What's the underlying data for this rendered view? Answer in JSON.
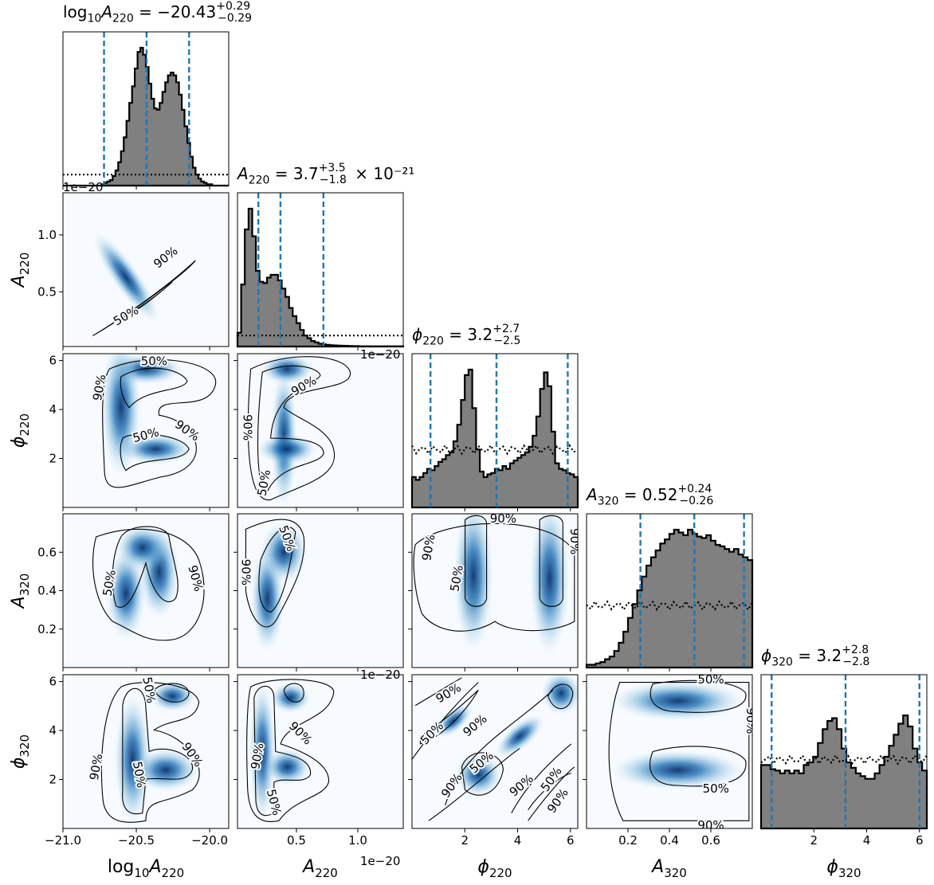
{
  "chart_data": {
    "type": "corner",
    "parameters": [
      "log10_A220",
      "A220",
      "phi220",
      "A320",
      "phi320"
    ],
    "titles": [
      {
        "param": "log10_A220",
        "pre": "log",
        "sub1": "10",
        "sym": "A",
        "sub2": "220",
        "eq": " = −20.43",
        "sup": "+0.29",
        "sub": "−0.29",
        "post": ""
      },
      {
        "param": "A220",
        "pre": "",
        "sub1": "",
        "sym": "A",
        "sub2": "220",
        "eq": " = 3.7",
        "sup": "+3.5",
        "sub": "−1.8",
        "post": " × 10⁻²¹"
      },
      {
        "param": "phi220",
        "pre": "",
        "sub1": "",
        "sym": "ϕ",
        "sub2": "220",
        "eq": " = 3.2",
        "sup": "+2.7",
        "sub": "−2.5",
        "post": ""
      },
      {
        "param": "A320",
        "pre": "",
        "sub1": "",
        "sym": "A",
        "sub2": "320",
        "eq": " = 0.52",
        "sup": "+0.24",
        "sub": "−0.26",
        "post": ""
      },
      {
        "param": "phi320",
        "pre": "",
        "sub1": "",
        "sym": "ϕ",
        "sub2": "320",
        "eq": " = 3.2",
        "sup": "+2.8",
        "sub": "−2.8",
        "post": ""
      }
    ],
    "axis_labels": [
      {
        "pre": "log",
        "sub1": "10",
        "sym": "A",
        "sub2": "220"
      },
      {
        "pre": "",
        "sub1": "",
        "sym": "A",
        "sub2": "220"
      },
      {
        "pre": "",
        "sub1": "",
        "sym": "ϕ",
        "sub2": "220"
      },
      {
        "pre": "",
        "sub1": "",
        "sym": "A",
        "sub2": "320"
      },
      {
        "pre": "",
        "sub1": "",
        "sym": "ϕ",
        "sub2": "320"
      }
    ],
    "offset_text": "1e−20",
    "ranges": [
      [
        -21.0,
        -19.87
      ],
      [
        0.02,
        1.37
      ],
      [
        0.0,
        6.28
      ],
      [
        0.0,
        0.8
      ],
      [
        0.0,
        6.28
      ]
    ],
    "ticks": [
      {
        "values": [
          -21.0,
          -20.5,
          -20.0
        ],
        "labels": [
          "−21.0",
          "−20.5",
          "−20.0"
        ]
      },
      {
        "values": [
          0.5,
          1.0
        ],
        "labels": [
          "0.5",
          "1.0"
        ]
      },
      {
        "values": [
          2,
          4,
          6
        ],
        "labels": [
          "2",
          "4",
          "6"
        ]
      },
      {
        "values": [
          0.2,
          0.4,
          0.6
        ],
        "labels": [
          "0.2",
          "0.4",
          "0.6"
        ]
      },
      {
        "values": [
          2,
          4,
          6
        ],
        "labels": [
          "2",
          "4",
          "6"
        ]
      }
    ],
    "quantiles": [
      [
        -20.72,
        -20.43,
        -20.14
      ],
      [
        0.19,
        0.37,
        0.72
      ],
      [
        0.7,
        3.2,
        5.9
      ],
      [
        0.26,
        0.52,
        0.76
      ],
      [
        0.4,
        3.2,
        6.0
      ]
    ],
    "marginal_histograms": [
      [
        0.0,
        0.0,
        0.0,
        0.0,
        0.0,
        0.0,
        0.0,
        0.0,
        0.0,
        0.0,
        0.0,
        0.0,
        0.0,
        0.0,
        0.01,
        0.02,
        0.03,
        0.04,
        0.07,
        0.11,
        0.17,
        0.25,
        0.35,
        0.47,
        0.6,
        0.72,
        0.85,
        0.97,
        1.0,
        0.95,
        0.86,
        0.74,
        0.63,
        0.56,
        0.55,
        0.6,
        0.68,
        0.75,
        0.8,
        0.82,
        0.8,
        0.75,
        0.66,
        0.55,
        0.43,
        0.31,
        0.21,
        0.13,
        0.08,
        0.05,
        0.03,
        0.02,
        0.01,
        0.01,
        0.0,
        0.0,
        0.0,
        0.0,
        0.0,
        0.0
      ],
      [
        0.1,
        0.45,
        0.85,
        1.0,
        0.8,
        0.55,
        0.47,
        0.46,
        0.5,
        0.52,
        0.52,
        0.48,
        0.42,
        0.36,
        0.28,
        0.22,
        0.17,
        0.12,
        0.08,
        0.06,
        0.04,
        0.03,
        0.02,
        0.015,
        0.012,
        0.01,
        0.008,
        0.007,
        0.006,
        0.005,
        0.004,
        0.003,
        0.003,
        0.002,
        0.002,
        0.002,
        0.002,
        0.002,
        0.002,
        0.002,
        0.002,
        0.002,
        0.002,
        0.002,
        0.002
      ],
      [
        0.22,
        0.2,
        0.22,
        0.25,
        0.28,
        0.27,
        0.3,
        0.33,
        0.35,
        0.38,
        0.4,
        0.48,
        0.6,
        0.78,
        0.96,
        1.0,
        0.72,
        0.42,
        0.26,
        0.22,
        0.24,
        0.25,
        0.28,
        0.27,
        0.3,
        0.28,
        0.32,
        0.34,
        0.36,
        0.38,
        0.4,
        0.44,
        0.52,
        0.66,
        0.86,
        0.98,
        0.88,
        0.55,
        0.32,
        0.28,
        0.27,
        0.25,
        0.24,
        0.22
      ],
      [
        0.02,
        0.02,
        0.03,
        0.04,
        0.06,
        0.08,
        0.12,
        0.18,
        0.26,
        0.36,
        0.46,
        0.56,
        0.66,
        0.74,
        0.8,
        0.85,
        0.9,
        0.93,
        0.97,
        1.0,
        0.98,
        0.96,
        1.0,
        0.97,
        0.95,
        0.94,
        0.96,
        0.92,
        0.89,
        0.88,
        0.86,
        0.84,
        0.86,
        0.82,
        0.8,
        0.78
      ],
      [
        0.46,
        0.46,
        0.43,
        0.42,
        0.4,
        0.42,
        0.4,
        0.42,
        0.4,
        0.46,
        0.48,
        0.52,
        0.62,
        0.72,
        0.78,
        0.8,
        0.72,
        0.58,
        0.48,
        0.44,
        0.4,
        0.38,
        0.36,
        0.36,
        0.4,
        0.46,
        0.52,
        0.6,
        0.68,
        0.76,
        0.82,
        0.74,
        0.58,
        0.48,
        0.42
      ]
    ],
    "prior_levels": [
      0.08,
      0.08,
      0.42,
      0.45,
      0.5
    ],
    "contour_levels": [
      "50%",
      "90%"
    ]
  }
}
